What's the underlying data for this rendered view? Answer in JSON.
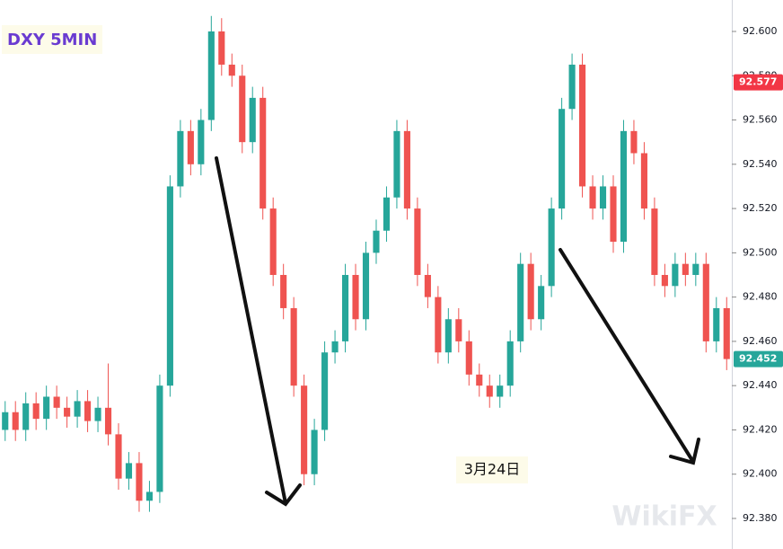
{
  "chart_data": {
    "type": "candlestick",
    "title": "DXY 5MIN",
    "annotation": "3月24日",
    "watermark": "WikiFX",
    "up_color": "#26a69a",
    "down_color": "#ef5350",
    "ylim": [
      92.3662,
      92.6142
    ],
    "yticks": [
      {
        "value": 92.38,
        "label": "92.380"
      },
      {
        "value": 92.4,
        "label": "92.400"
      },
      {
        "value": 92.42,
        "label": "92.420"
      },
      {
        "value": 92.44,
        "label": "92.440"
      },
      {
        "value": 92.46,
        "label": "92.460"
      },
      {
        "value": 92.48,
        "label": "92.480"
      },
      {
        "value": 92.5,
        "label": "92.500"
      },
      {
        "value": 92.52,
        "label": "92.520"
      },
      {
        "value": 92.54,
        "label": "92.540"
      },
      {
        "value": 92.56,
        "label": "92.560"
      },
      {
        "value": 92.58,
        "label": "92.580"
      },
      {
        "value": 92.6,
        "label": "92.600"
      }
    ],
    "price_labels": [
      {
        "value": 92.577,
        "color": "#f23645"
      },
      {
        "value": 92.452,
        "color": "#26a69a"
      }
    ],
    "open": [
      92.42,
      92.428,
      92.42,
      92.432,
      92.425,
      92.435,
      92.43,
      92.426,
      92.433,
      92.424,
      92.43,
      92.418,
      92.398,
      92.405,
      92.388,
      92.392,
      92.44,
      92.53,
      92.555,
      92.54,
      92.56,
      92.6,
      92.585,
      92.58,
      92.55,
      92.57,
      92.52,
      92.49,
      92.475,
      92.44,
      92.4,
      92.42,
      92.455,
      92.46,
      92.49,
      92.47,
      92.5,
      92.51,
      92.525,
      92.555,
      92.52,
      92.49,
      92.48,
      92.455,
      92.47,
      92.46,
      92.445,
      92.44,
      92.435,
      92.44,
      92.46,
      92.495,
      92.47,
      92.485,
      92.52,
      92.565,
      92.585,
      92.53,
      92.52,
      92.53,
      92.505,
      92.555,
      92.545,
      92.52,
      92.49,
      92.485,
      92.495,
      92.49,
      92.495,
      92.46,
      92.475
    ],
    "high": [
      92.433,
      92.433,
      92.437,
      92.437,
      92.44,
      92.44,
      92.435,
      92.438,
      92.438,
      92.435,
      92.45,
      92.423,
      92.41,
      92.41,
      92.397,
      92.445,
      92.535,
      92.56,
      92.56,
      92.565,
      92.607,
      92.606,
      92.59,
      92.585,
      92.575,
      92.575,
      92.525,
      92.495,
      92.48,
      92.445,
      92.425,
      92.46,
      92.465,
      92.495,
      92.495,
      92.505,
      92.515,
      92.53,
      92.56,
      92.56,
      92.525,
      92.495,
      92.485,
      92.475,
      92.475,
      92.465,
      92.45,
      92.445,
      92.445,
      92.465,
      92.5,
      92.5,
      92.49,
      92.525,
      92.57,
      92.59,
      92.59,
      92.535,
      92.535,
      92.535,
      92.56,
      92.56,
      92.55,
      92.525,
      92.495,
      92.5,
      92.5,
      92.5,
      92.5,
      92.48,
      92.48
    ],
    "low": [
      92.415,
      92.415,
      92.415,
      92.42,
      92.42,
      92.425,
      92.421,
      92.421,
      92.419,
      92.419,
      92.413,
      92.393,
      92.393,
      92.383,
      92.383,
      92.387,
      92.435,
      92.525,
      92.535,
      92.535,
      92.555,
      92.58,
      92.575,
      92.545,
      92.545,
      92.515,
      92.485,
      92.47,
      92.435,
      92.395,
      92.395,
      92.415,
      92.45,
      92.455,
      92.465,
      92.465,
      92.495,
      92.505,
      92.52,
      92.515,
      92.485,
      92.475,
      92.45,
      92.45,
      92.455,
      92.44,
      92.435,
      92.43,
      92.43,
      92.435,
      92.455,
      92.465,
      92.465,
      92.48,
      92.515,
      92.56,
      92.525,
      92.515,
      92.515,
      92.5,
      92.5,
      92.54,
      92.515,
      92.485,
      92.48,
      92.48,
      92.485,
      92.485,
      92.455,
      92.455,
      92.447
    ],
    "close": [
      92.428,
      92.42,
      92.432,
      92.425,
      92.435,
      92.43,
      92.426,
      92.433,
      92.424,
      92.43,
      92.418,
      92.398,
      92.405,
      92.388,
      92.392,
      92.44,
      92.53,
      92.555,
      92.54,
      92.56,
      92.6,
      92.585,
      92.58,
      92.55,
      92.57,
      92.52,
      92.49,
      92.475,
      92.44,
      92.4,
      92.42,
      92.455,
      92.46,
      92.49,
      92.47,
      92.5,
      92.51,
      92.525,
      92.555,
      92.52,
      92.49,
      92.48,
      92.455,
      92.47,
      92.46,
      92.445,
      92.44,
      92.435,
      92.44,
      92.46,
      92.495,
      92.47,
      92.485,
      92.52,
      92.565,
      92.585,
      92.53,
      92.52,
      92.53,
      92.505,
      92.555,
      92.545,
      92.52,
      92.49,
      92.485,
      92.495,
      92.49,
      92.495,
      92.46,
      92.475,
      92.452
    ]
  }
}
